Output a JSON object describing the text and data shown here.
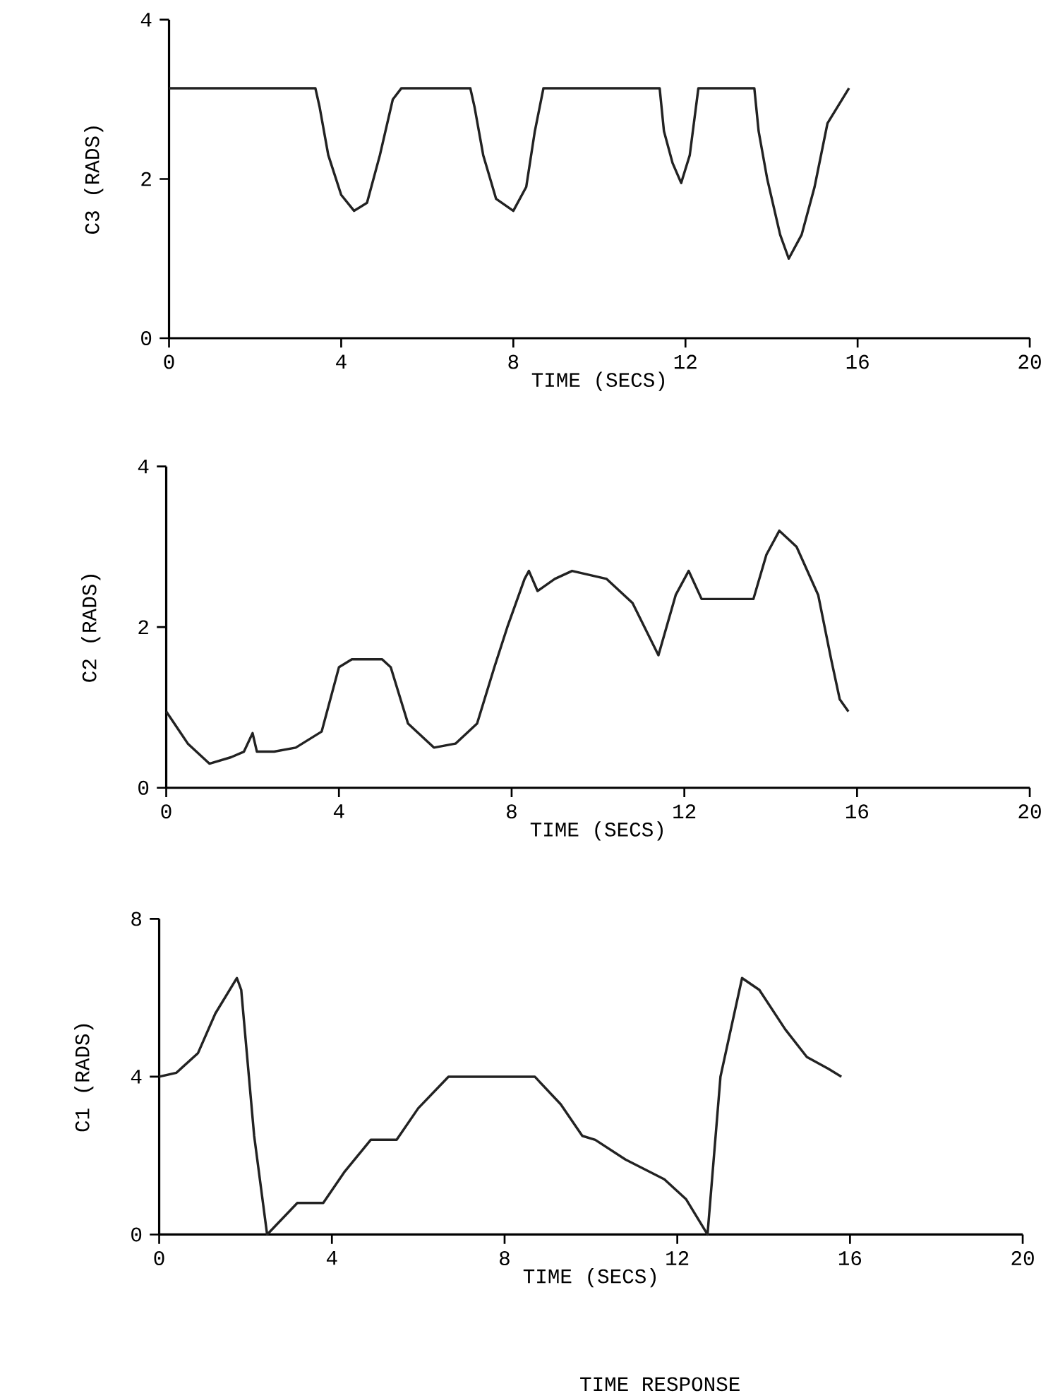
{
  "chart_data": [
    {
      "type": "line",
      "ylabel": "C3 (RADS)",
      "xlabel": "TIME (SECS)",
      "xlim": [
        0,
        20
      ],
      "ylim": [
        0,
        4
      ],
      "xticks": [
        0,
        4,
        8,
        12,
        16,
        20
      ],
      "yticks": [
        0,
        2,
        4
      ],
      "grid": false,
      "marker": "none",
      "line_style": "solid",
      "x": [
        0,
        3.4,
        3.5,
        3.7,
        4.0,
        4.3,
        4.6,
        4.9,
        5.2,
        5.4,
        7.0,
        7.1,
        7.3,
        7.6,
        8.0,
        8.3,
        8.5,
        8.7,
        11.4,
        11.5,
        11.7,
        11.9,
        12.1,
        12.3,
        13.6,
        13.7,
        13.9,
        14.2,
        14.4,
        14.7,
        15.0,
        15.3,
        15.8
      ],
      "series": [
        {
          "color": "#222222",
          "values": [
            3.14,
            3.14,
            2.9,
            2.3,
            1.8,
            1.6,
            1.7,
            2.3,
            3.0,
            3.14,
            3.14,
            2.9,
            2.3,
            1.75,
            1.6,
            1.9,
            2.6,
            3.14,
            3.14,
            2.6,
            2.2,
            1.95,
            2.3,
            3.14,
            3.14,
            2.6,
            2.0,
            1.3,
            1.0,
            1.3,
            1.9,
            2.7,
            3.14
          ]
        }
      ]
    },
    {
      "type": "line",
      "ylabel": "C2 (RADS)",
      "xlabel": "TIME (SECS)",
      "xlim": [
        0,
        20
      ],
      "ylim": [
        0,
        4
      ],
      "xticks": [
        0,
        4,
        8,
        12,
        16,
        20
      ],
      "yticks": [
        0,
        2,
        4
      ],
      "grid": false,
      "marker": "none",
      "line_style": "solid",
      "x": [
        0,
        0.5,
        1.0,
        1.5,
        1.8,
        2.0,
        2.1,
        2.5,
        3.0,
        3.6,
        4.0,
        4.3,
        5.0,
        5.2,
        5.6,
        6.2,
        6.7,
        7.2,
        7.6,
        7.9,
        8.3,
        8.4,
        8.6,
        9.0,
        9.4,
        10.2,
        10.8,
        11.4,
        11.8,
        12.1,
        12.4,
        13.6,
        13.9,
        14.2,
        14.6,
        15.1,
        15.4,
        15.6,
        15.8
      ],
      "series": [
        {
          "color": "#222222",
          "values": [
            0.95,
            0.55,
            0.3,
            0.38,
            0.45,
            0.68,
            0.45,
            0.45,
            0.5,
            0.7,
            1.5,
            1.6,
            1.6,
            1.5,
            0.8,
            0.5,
            0.55,
            0.8,
            1.5,
            2.0,
            2.6,
            2.7,
            2.45,
            2.6,
            2.7,
            2.6,
            2.3,
            1.65,
            2.4,
            2.7,
            2.35,
            2.35,
            2.9,
            3.2,
            3.0,
            2.4,
            1.6,
            1.1,
            0.95
          ]
        }
      ]
    },
    {
      "type": "line",
      "ylabel": "C1 (RADS)",
      "xlabel": "TIME (SECS)",
      "annotations": [
        "TIME RESPONSE"
      ],
      "xlim": [
        0,
        20
      ],
      "ylim": [
        0,
        8
      ],
      "xticks": [
        0,
        4,
        8,
        12,
        16,
        20
      ],
      "yticks": [
        0,
        4,
        8
      ],
      "grid": false,
      "marker": "none",
      "line_style": "solid",
      "x": [
        0,
        0.4,
        0.9,
        1.3,
        1.8,
        1.9,
        2.2,
        2.5,
        3.2,
        3.8,
        4.3,
        4.9,
        5.5,
        6.0,
        6.7,
        8.7,
        9.3,
        9.8,
        10.1,
        10.8,
        11.7,
        12.2,
        12.7,
        13.0,
        13.5,
        13.9,
        14.5,
        15.0,
        15.5,
        15.8
      ],
      "series": [
        {
          "color": "#222222",
          "values": [
            4.0,
            4.1,
            4.6,
            5.6,
            6.5,
            6.2,
            2.5,
            0,
            0.8,
            0.8,
            1.6,
            2.4,
            2.4,
            3.2,
            4.0,
            4.0,
            3.3,
            2.5,
            2.4,
            1.9,
            1.4,
            0.9,
            0,
            4.0,
            6.5,
            6.2,
            5.2,
            4.5,
            4.2,
            4.0
          ]
        }
      ]
    }
  ]
}
